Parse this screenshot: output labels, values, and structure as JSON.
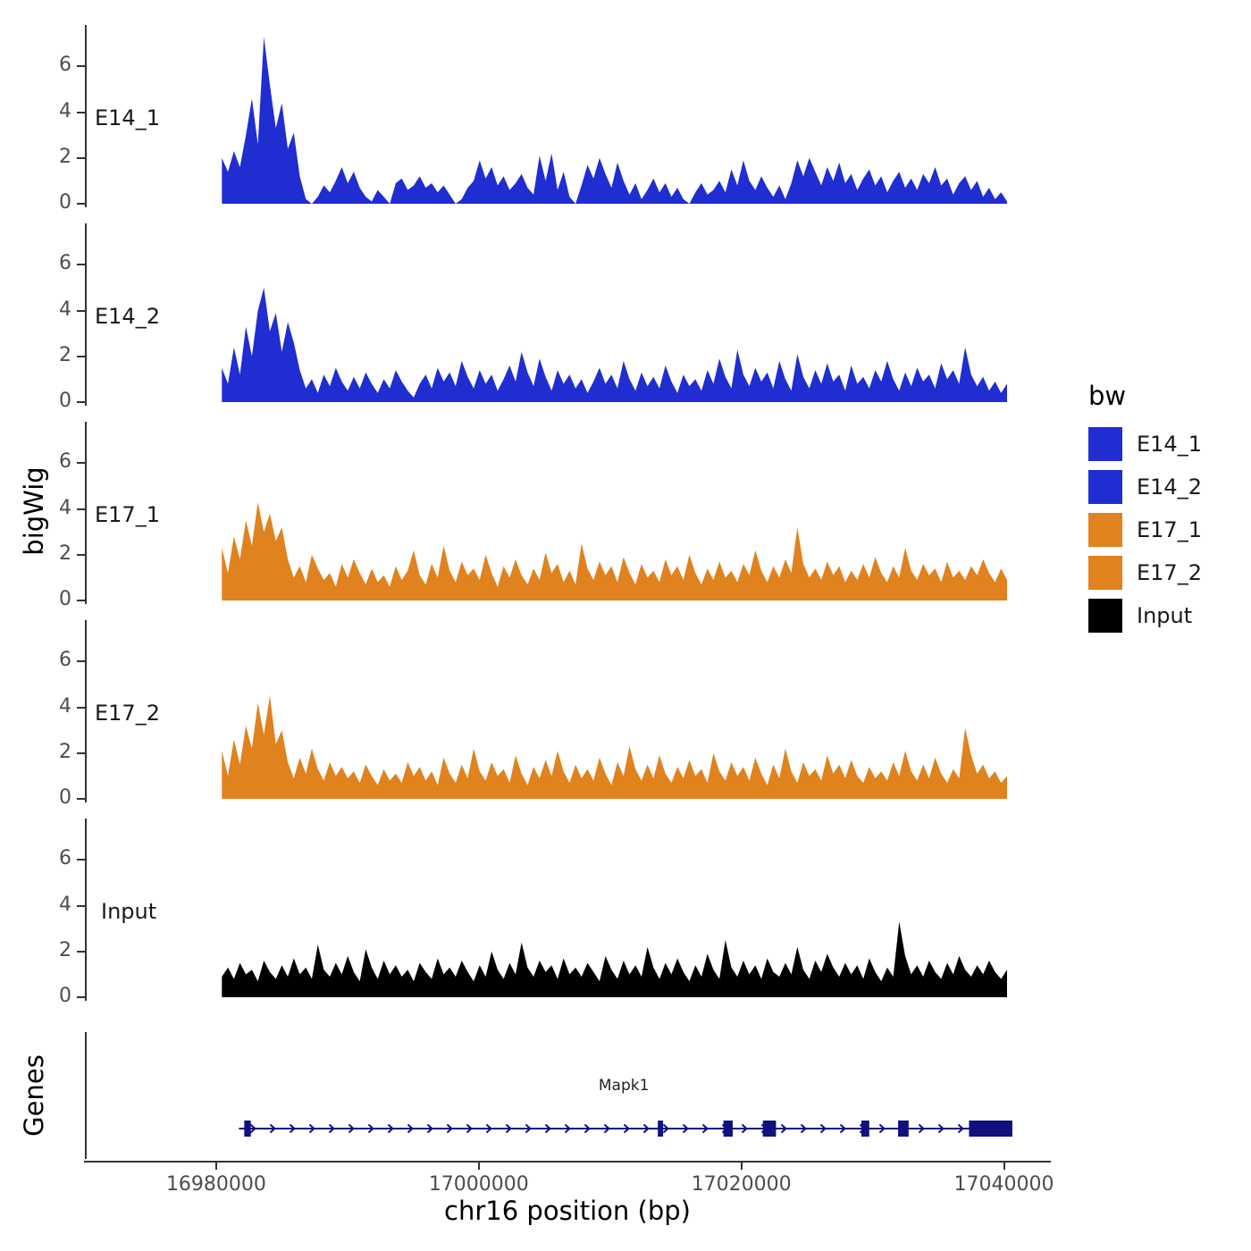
{
  "chart_data": {
    "type": "area",
    "title": "",
    "xlabel": "chr16 position (bp)",
    "ylabel": "bigWig",
    "genes_label": "Genes",
    "x_domain_bp": [
      16970000,
      17043500
    ],
    "x_ticks": [
      {
        "bp": 16980000,
        "label": "16980000"
      },
      {
        "bp": 17000000,
        "label": "17000000"
      },
      {
        "bp": 17020000,
        "label": "17020000"
      },
      {
        "bp": 17040000,
        "label": "17040000"
      }
    ],
    "y_ticks": [
      {
        "v": 0,
        "label": "0"
      },
      {
        "v": 2,
        "label": "2"
      },
      {
        "v": 4,
        "label": "4"
      },
      {
        "v": 6,
        "label": "6"
      }
    ],
    "ylim": [
      0,
      7.8
    ],
    "signal_start_bp": 16980300,
    "signal_end_bp": 17040100,
    "tracks": [
      {
        "name": "E14_1",
        "color": "#1F2DD1",
        "values": [
          2.0,
          1.4,
          2.3,
          1.6,
          3.0,
          4.6,
          2.6,
          7.3,
          5.2,
          3.3,
          4.4,
          2.4,
          3.1,
          1.2,
          0.2,
          0,
          0.3,
          0.8,
          0.5,
          1.0,
          1.6,
          0.9,
          1.4,
          0.7,
          0.3,
          0.1,
          0.6,
          0.3,
          0,
          0.9,
          1.1,
          0.6,
          0.8,
          1.2,
          0.7,
          0.9,
          0.5,
          0.8,
          0.4,
          0,
          0.2,
          0.7,
          1.0,
          1.9,
          1.1,
          1.6,
          0.8,
          1.2,
          0.6,
          0.9,
          1.3,
          0.7,
          0.4,
          2.1,
          1.0,
          2.2,
          0.6,
          1.4,
          0.3,
          0,
          0.8,
          1.7,
          1.1,
          2.0,
          1.3,
          0.7,
          1.8,
          1.0,
          0.4,
          0.9,
          0.2,
          0.6,
          1.1,
          0.5,
          0.9,
          0.3,
          0.7,
          0.2,
          0,
          0.5,
          0.9,
          0.4,
          0.6,
          1.0,
          0.5,
          1.5,
          0.8,
          1.9,
          1.0,
          0.6,
          1.2,
          0.7,
          0.3,
          0.8,
          0.2,
          0.9,
          1.9,
          1.2,
          2.0,
          1.4,
          0.8,
          1.6,
          1.0,
          1.8,
          0.9,
          1.3,
          0.6,
          1.1,
          1.5,
          0.8,
          1.2,
          0.5,
          1.0,
          1.4,
          0.7,
          1.1,
          0.6,
          1.3,
          0.9,
          1.6,
          0.8,
          1.1,
          0.4,
          0.9,
          1.2,
          0.6,
          1.0,
          0.3,
          0.7,
          0.2,
          0.5,
          0.1
        ]
      },
      {
        "name": "E14_2",
        "color": "#1F2DD1",
        "values": [
          1.5,
          0.8,
          2.4,
          1.2,
          3.3,
          2.0,
          4.0,
          5.0,
          3.1,
          3.9,
          2.2,
          3.5,
          2.6,
          1.4,
          0.6,
          1.0,
          0.4,
          1.2,
          0.7,
          1.5,
          0.9,
          0.5,
          1.1,
          0.6,
          1.3,
          0.8,
          0.4,
          1.0,
          0.6,
          1.4,
          0.9,
          0.5,
          0.2,
          0.8,
          1.2,
          0.6,
          1.5,
          0.9,
          1.3,
          0.7,
          1.8,
          1.1,
          0.6,
          1.4,
          0.8,
          1.2,
          0.5,
          1.0,
          1.6,
          0.9,
          2.2,
          1.3,
          0.7,
          1.9,
          1.1,
          0.5,
          1.4,
          0.8,
          1.2,
          0.6,
          1.0,
          0.4,
          0.9,
          1.5,
          0.8,
          1.2,
          0.6,
          1.8,
          1.0,
          0.5,
          1.3,
          0.7,
          1.1,
          0.6,
          1.6,
          0.9,
          0.4,
          1.2,
          0.7,
          1.0,
          0.5,
          1.4,
          0.8,
          1.9,
          1.1,
          0.6,
          2.3,
          1.2,
          0.7,
          1.5,
          0.9,
          1.3,
          0.6,
          1.8,
          1.0,
          0.5,
          2.1,
          1.1,
          0.6,
          1.4,
          0.8,
          1.7,
          0.9,
          1.2,
          0.5,
          1.6,
          0.8,
          1.1,
          0.6,
          1.4,
          0.9,
          1.8,
          1.0,
          0.5,
          1.3,
          0.7,
          1.5,
          0.9,
          1.2,
          0.6,
          1.7,
          1.0,
          1.4,
          0.8,
          2.4,
          1.2,
          0.7,
          1.1,
          0.5,
          0.9,
          0.4,
          0.8
        ]
      },
      {
        "name": "E17_1",
        "color": "#E0821E",
        "values": [
          2.3,
          1.2,
          2.8,
          1.8,
          3.5,
          2.4,
          4.3,
          3.0,
          3.8,
          2.6,
          3.2,
          1.8,
          1.0,
          1.5,
          0.8,
          2.0,
          1.4,
          0.9,
          1.2,
          0.6,
          1.6,
          1.0,
          1.8,
          1.2,
          0.7,
          1.4,
          0.8,
          1.1,
          0.6,
          1.5,
          0.9,
          1.3,
          2.2,
          1.1,
          0.7,
          1.6,
          1.0,
          2.4,
          1.3,
          0.8,
          1.7,
          1.1,
          1.4,
          0.9,
          2.0,
          1.2,
          0.6,
          1.5,
          1.0,
          1.8,
          1.1,
          0.7,
          1.4,
          0.9,
          2.1,
          1.2,
          1.6,
          0.8,
          1.3,
          0.7,
          2.5,
          1.4,
          0.9,
          1.7,
          1.1,
          1.5,
          0.8,
          1.9,
          1.2,
          0.7,
          1.6,
          1.0,
          1.3,
          0.8,
          1.8,
          1.1,
          1.5,
          0.9,
          2.0,
          1.2,
          0.7,
          1.4,
          0.9,
          1.7,
          1.0,
          1.3,
          0.8,
          1.6,
          1.1,
          2.2,
          1.3,
          0.8,
          1.5,
          1.0,
          1.8,
          1.2,
          3.2,
          1.6,
          1.0,
          1.4,
          0.9,
          1.7,
          1.1,
          1.5,
          0.8,
          1.3,
          0.9,
          1.6,
          1.0,
          1.9,
          1.2,
          0.8,
          1.5,
          1.0,
          2.3,
          1.3,
          0.9,
          1.6,
          1.1,
          1.4,
          0.8,
          1.7,
          1.0,
          1.3,
          0.9,
          1.5,
          1.1,
          1.8,
          1.2,
          0.8,
          1.4,
          0.9
        ]
      },
      {
        "name": "E17_2",
        "color": "#E0821E",
        "values": [
          2.1,
          1.0,
          2.6,
          1.5,
          3.2,
          2.2,
          4.2,
          2.8,
          4.5,
          2.4,
          3.0,
          1.6,
          0.9,
          1.8,
          1.1,
          2.2,
          1.3,
          0.8,
          1.6,
          1.0,
          1.4,
          0.9,
          1.2,
          0.7,
          1.5,
          1.0,
          0.6,
          1.3,
          0.8,
          1.1,
          0.7,
          1.6,
          1.0,
          1.4,
          0.8,
          1.2,
          0.6,
          1.8,
          1.1,
          0.7,
          1.5,
          0.9,
          2.2,
          1.2,
          0.8,
          1.6,
          1.0,
          1.3,
          0.7,
          1.9,
          1.1,
          0.6,
          1.4,
          0.9,
          1.7,
          1.0,
          2.1,
          1.2,
          0.7,
          1.5,
          0.9,
          1.3,
          0.8,
          1.8,
          1.1,
          0.6,
          1.6,
          1.0,
          2.3,
          1.3,
          0.8,
          1.5,
          0.9,
          1.9,
          1.1,
          0.7,
          1.4,
          0.9,
          1.7,
          1.0,
          1.3,
          0.7,
          2.0,
          1.2,
          0.8,
          1.6,
          1.0,
          1.4,
          0.8,
          1.8,
          1.1,
          0.6,
          1.5,
          0.9,
          2.2,
          1.2,
          0.7,
          1.6,
          1.0,
          1.3,
          0.8,
          1.9,
          1.1,
          1.5,
          0.9,
          1.7,
          1.0,
          0.7,
          1.4,
          0.9,
          1.2,
          0.8,
          1.6,
          1.0,
          2.1,
          1.2,
          0.8,
          1.5,
          0.9,
          1.8,
          1.1,
          0.7,
          1.3,
          0.9,
          3.1,
          1.9,
          1.1,
          1.5,
          0.9,
          1.2,
          0.7,
          1.0
        ]
      },
      {
        "name": "Input",
        "color": "#000000",
        "values": [
          0.9,
          1.3,
          0.8,
          1.5,
          1.0,
          1.2,
          0.7,
          1.6,
          1.1,
          0.8,
          1.4,
          0.9,
          1.7,
          1.0,
          1.3,
          0.8,
          2.3,
          1.2,
          0.9,
          1.5,
          1.0,
          1.8,
          1.1,
          0.7,
          2.1,
          1.3,
          0.8,
          1.6,
          1.0,
          1.4,
          0.9,
          1.2,
          0.7,
          1.5,
          1.1,
          0.8,
          1.7,
          1.0,
          1.3,
          0.9,
          1.6,
          1.1,
          0.7,
          1.4,
          0.9,
          2.0,
          1.2,
          0.8,
          1.5,
          1.0,
          2.4,
          1.3,
          0.9,
          1.6,
          1.1,
          1.4,
          0.8,
          1.7,
          1.0,
          1.3,
          0.9,
          1.5,
          1.1,
          0.7,
          1.8,
          1.2,
          0.8,
          1.6,
          1.0,
          1.4,
          0.9,
          2.2,
          1.3,
          0.8,
          1.5,
          1.0,
          1.7,
          1.1,
          0.7,
          1.4,
          0.9,
          1.9,
          1.2,
          0.8,
          2.5,
          1.3,
          0.9,
          1.6,
          1.0,
          1.4,
          0.8,
          1.7,
          1.1,
          0.9,
          1.5,
          1.0,
          2.2,
          1.2,
          0.8,
          1.6,
          1.1,
          1.9,
          1.3,
          0.9,
          1.5,
          1.0,
          1.4,
          0.8,
          1.7,
          1.1,
          0.7,
          1.3,
          0.9,
          3.3,
          1.8,
          1.0,
          1.4,
          0.9,
          1.6,
          1.1,
          0.8,
          1.5,
          1.0,
          1.8,
          1.2,
          0.9,
          1.4,
          1.0,
          1.6,
          1.1,
          0.8,
          1.2
        ]
      }
    ],
    "legend": {
      "title": "bw",
      "entries": [
        {
          "label": "E14_1",
          "color": "#1F2DD1"
        },
        {
          "label": "E14_2",
          "color": "#1F2DD1"
        },
        {
          "label": "E17_1",
          "color": "#E0821E"
        },
        {
          "label": "E17_2",
          "color": "#E0821E"
        },
        {
          "label": "Input",
          "color": "#000000"
        }
      ]
    },
    "gene": {
      "name": "Mapk1",
      "color": "#10107E",
      "strand": "+",
      "start_bp": 16981600,
      "end_bp": 17040500,
      "exons": [
        [
          16982000,
          16982500
        ],
        [
          17013500,
          17013900
        ],
        [
          17018500,
          17019200
        ],
        [
          17021500,
          17022500
        ],
        [
          17029000,
          17029600
        ],
        [
          17031800,
          17032600
        ],
        [
          17037200,
          17040500
        ]
      ]
    }
  }
}
